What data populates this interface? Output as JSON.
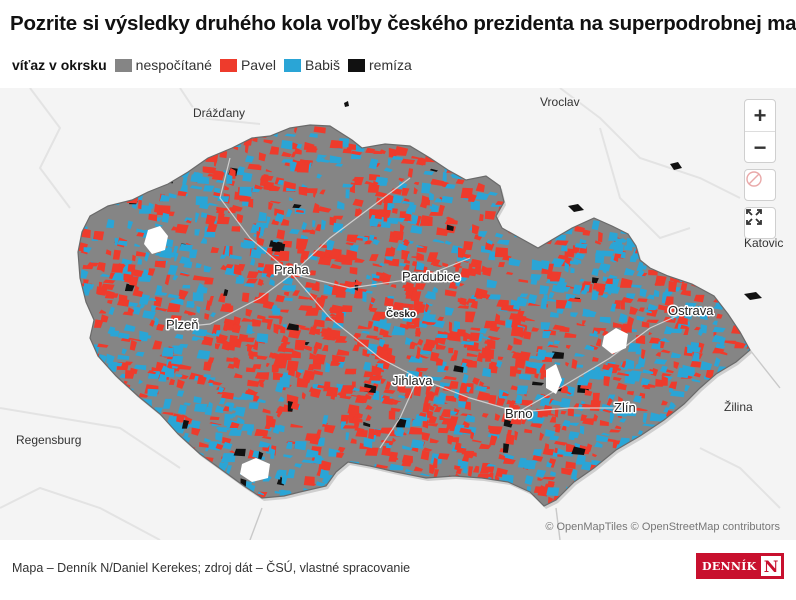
{
  "title": "Pozrite si výsledky druhého kola voľby českého prezidenta na superpodrobnej mape",
  "legend": {
    "title": "víťaz v okrsku",
    "items": [
      {
        "label": "nespočítané",
        "color": "#858585"
      },
      {
        "label": "Pavel",
        "color": "#ee3b2c"
      },
      {
        "label": "Babiš",
        "color": "#2aa5d6"
      },
      {
        "label": "remíza",
        "color": "#111111"
      }
    ]
  },
  "map": {
    "city_labels": {
      "praha": "Praha",
      "pardubice": "Pardubice",
      "cesko": "Česko",
      "plzen": "Plzeň",
      "jihlava": "Jihlava",
      "brno": "Brno",
      "zlin": "Zlín",
      "ostrava": "Ostrava"
    },
    "outside_labels": {
      "drazdany": "Drážďany",
      "vroclav": "Vroclav",
      "katovice": "Katovic",
      "regensburg": "Regensburg",
      "zilina": "Žilina"
    },
    "controls": {
      "zoom_in": "+",
      "zoom_out": "−"
    },
    "attribution": "© OpenMapTiles © OpenStreetMap contributors"
  },
  "footer": {
    "source": "Mapa – Denník N/Daniel Kerekes; zdroj dát – ČSÚ, vlastné spracovanie",
    "logo_text": "DENNÍK",
    "logo_mark": "N"
  }
}
